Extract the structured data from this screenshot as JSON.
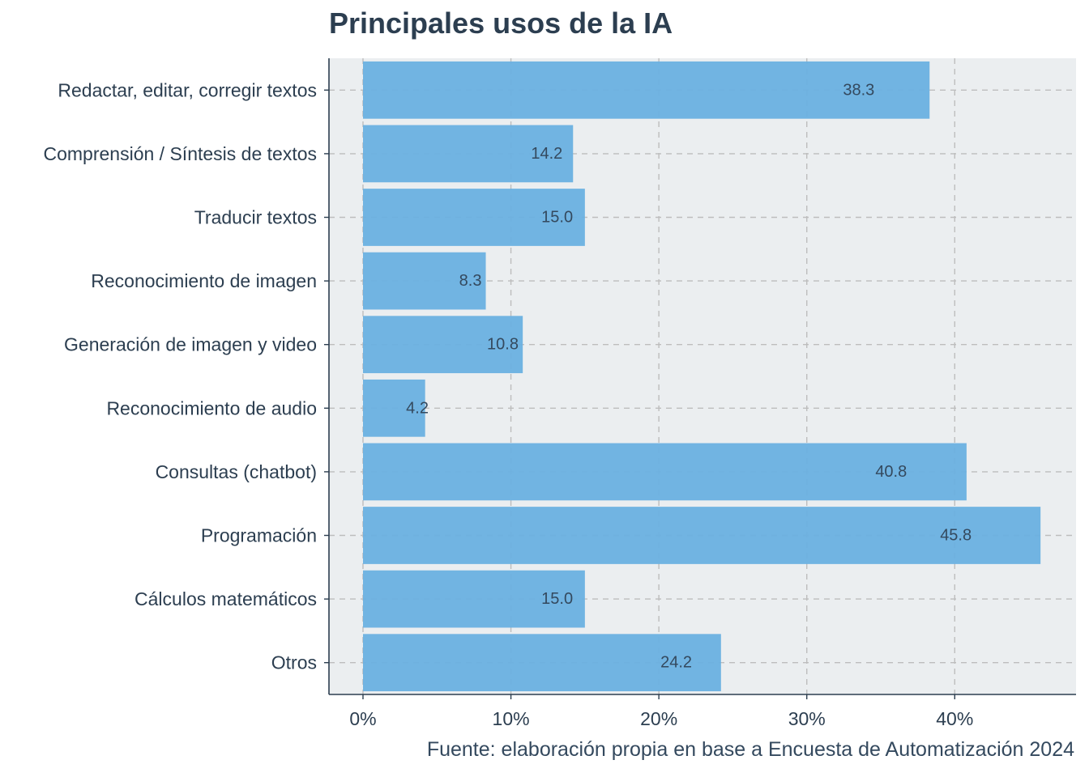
{
  "chart_data": {
    "type": "bar",
    "orientation": "horizontal",
    "title": "Principales usos de la IA",
    "caption": "Fuente: elaboración propia en base a Encuesta de Automatización 2024",
    "xlabel": "",
    "ylabel": "",
    "categories": [
      "Redactar, editar, corregir textos",
      "Comprensión / Síntesis de textos",
      "Traducir textos",
      "Reconocimiento de imagen",
      "Generación de imagen y video",
      "Reconocimiento de audio",
      "Consultas (chatbot)",
      "Programación",
      "Cálculos matemáticos",
      "Otros"
    ],
    "values": [
      38.3,
      14.2,
      15.0,
      8.3,
      10.8,
      4.2,
      40.8,
      45.8,
      15.0,
      24.2
    ],
    "value_labels": [
      "38.3",
      "14.2",
      "15.0",
      "8.3",
      "10.8",
      "4.2",
      "40.8",
      "45.8",
      "15.0",
      "24.2"
    ],
    "xticks": [
      0,
      10,
      20,
      30,
      40
    ],
    "xtick_labels": [
      "0%",
      "10%",
      "20%",
      "30%",
      "40%"
    ],
    "xlim": [
      -2.3,
      48.2
    ],
    "grid": true,
    "legend": "none",
    "colors": {
      "bar": "#6AB0E0",
      "panel": "#EBEEF0",
      "grid": "#BDBDBD",
      "axis": "#2C3E50",
      "text": "#2C3E50"
    }
  }
}
